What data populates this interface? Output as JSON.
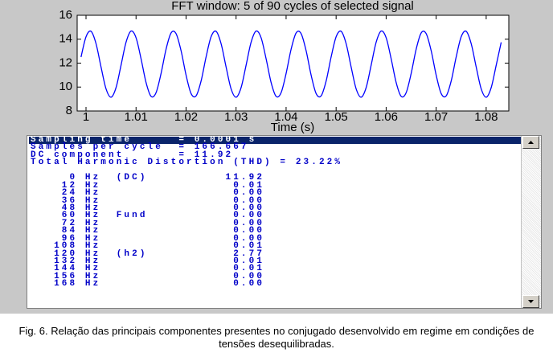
{
  "chart_data": {
    "type": "line",
    "title": "FFT window: 5 of 90 cycles of selected signal",
    "xlabel": "Time (s)",
    "xlim": [
      0.99823,
      1.08452
    ],
    "ylim": [
      8,
      16
    ],
    "xticks": [
      1,
      1.01,
      1.02,
      1.03,
      1.04,
      1.05,
      1.06,
      1.07,
      1.08
    ],
    "yticks": [
      8,
      10,
      12,
      14,
      16
    ],
    "x": [
      0.999,
      1.0,
      1.001,
      1.002,
      1.003,
      1.004,
      1.005,
      1.006,
      1.007,
      1.008,
      1.009,
      1.01,
      1.011,
      1.012,
      1.013,
      1.014,
      1.015,
      1.016,
      1.017,
      1.018,
      1.019,
      1.02,
      1.021,
      1.022,
      1.023,
      1.024,
      1.025,
      1.026,
      1.027,
      1.028,
      1.029,
      1.03,
      1.031,
      1.032,
      1.033,
      1.034,
      1.035,
      1.036,
      1.037,
      1.038,
      1.039,
      1.04,
      1.041,
      1.042,
      1.043,
      1.044,
      1.045,
      1.046,
      1.047,
      1.048,
      1.049,
      1.05,
      1.051,
      1.052,
      1.053,
      1.054,
      1.055,
      1.056,
      1.057,
      1.058,
      1.059,
      1.06,
      1.061,
      1.062,
      1.063,
      1.064,
      1.065,
      1.066,
      1.067,
      1.068,
      1.069,
      1.07,
      1.071,
      1.072,
      1.073,
      1.074,
      1.075,
      1.076,
      1.077,
      1.078,
      1.079,
      1.08,
      1.081,
      1.082,
      1.083
    ],
    "series": [
      {
        "color": "#0000ff",
        "values": [
          12.51,
          14.2,
          14.66,
          13.63,
          11.68,
          9.85,
          9.15,
          9.95,
          11.82,
          13.74,
          14.68,
          14.12,
          12.37,
          10.38,
          9.22,
          9.53,
          11.13,
          13.16,
          14.52,
          14.47,
          13.04,
          11.0,
          9.46,
          9.26,
          10.5,
          12.51,
          14.2,
          14.66,
          13.63,
          11.68,
          9.85,
          9.15,
          9.95,
          11.82,
          13.74,
          14.68,
          14.12,
          12.37,
          10.38,
          9.22,
          9.53,
          11.13,
          13.16,
          14.52,
          14.47,
          13.04,
          11.0,
          9.46,
          9.26,
          10.5,
          12.51,
          14.2,
          14.66,
          13.63,
          11.68,
          9.85,
          9.15,
          9.95,
          11.82,
          13.74,
          14.68,
          14.12,
          12.37,
          10.38,
          9.22,
          9.53,
          11.13,
          13.16,
          14.52,
          14.47,
          13.04,
          11.0,
          9.46,
          9.26,
          10.5,
          12.51,
          14.2,
          14.66,
          13.63,
          11.68,
          9.85,
          9.15,
          9.95,
          11.82,
          13.74
        ]
      }
    ]
  },
  "listbox": {
    "lines": [
      "Sampling time      = 0.0001 s",
      "Samples per cycle  = 166.667",
      "DC component       = 11.92",
      "Total Harmonic Distortion (THD) = 23.22%",
      "",
      "     0 Hz  (DC)          11.92",
      "    12 Hz                 0.01",
      "    24 Hz                 0.00",
      "    36 Hz                 0.00",
      "    48 Hz                 0.00",
      "    60 Hz  Fund           0.00",
      "    72 Hz                 0.00",
      "    84 Hz                 0.00",
      "    96 Hz                 0.00",
      "   108 Hz                 0.01",
      "   120 Hz  (h2)           2.77",
      "   132 Hz                 0.01",
      "   144 Hz                 0.01",
      "   156 Hz                 0.00",
      "   168 Hz                 0.00"
    ]
  },
  "caption": "Fig. 6. Relação das principais componentes presentes no conjugado desenvolvido em regime em condições de tensões desequilibradas."
}
